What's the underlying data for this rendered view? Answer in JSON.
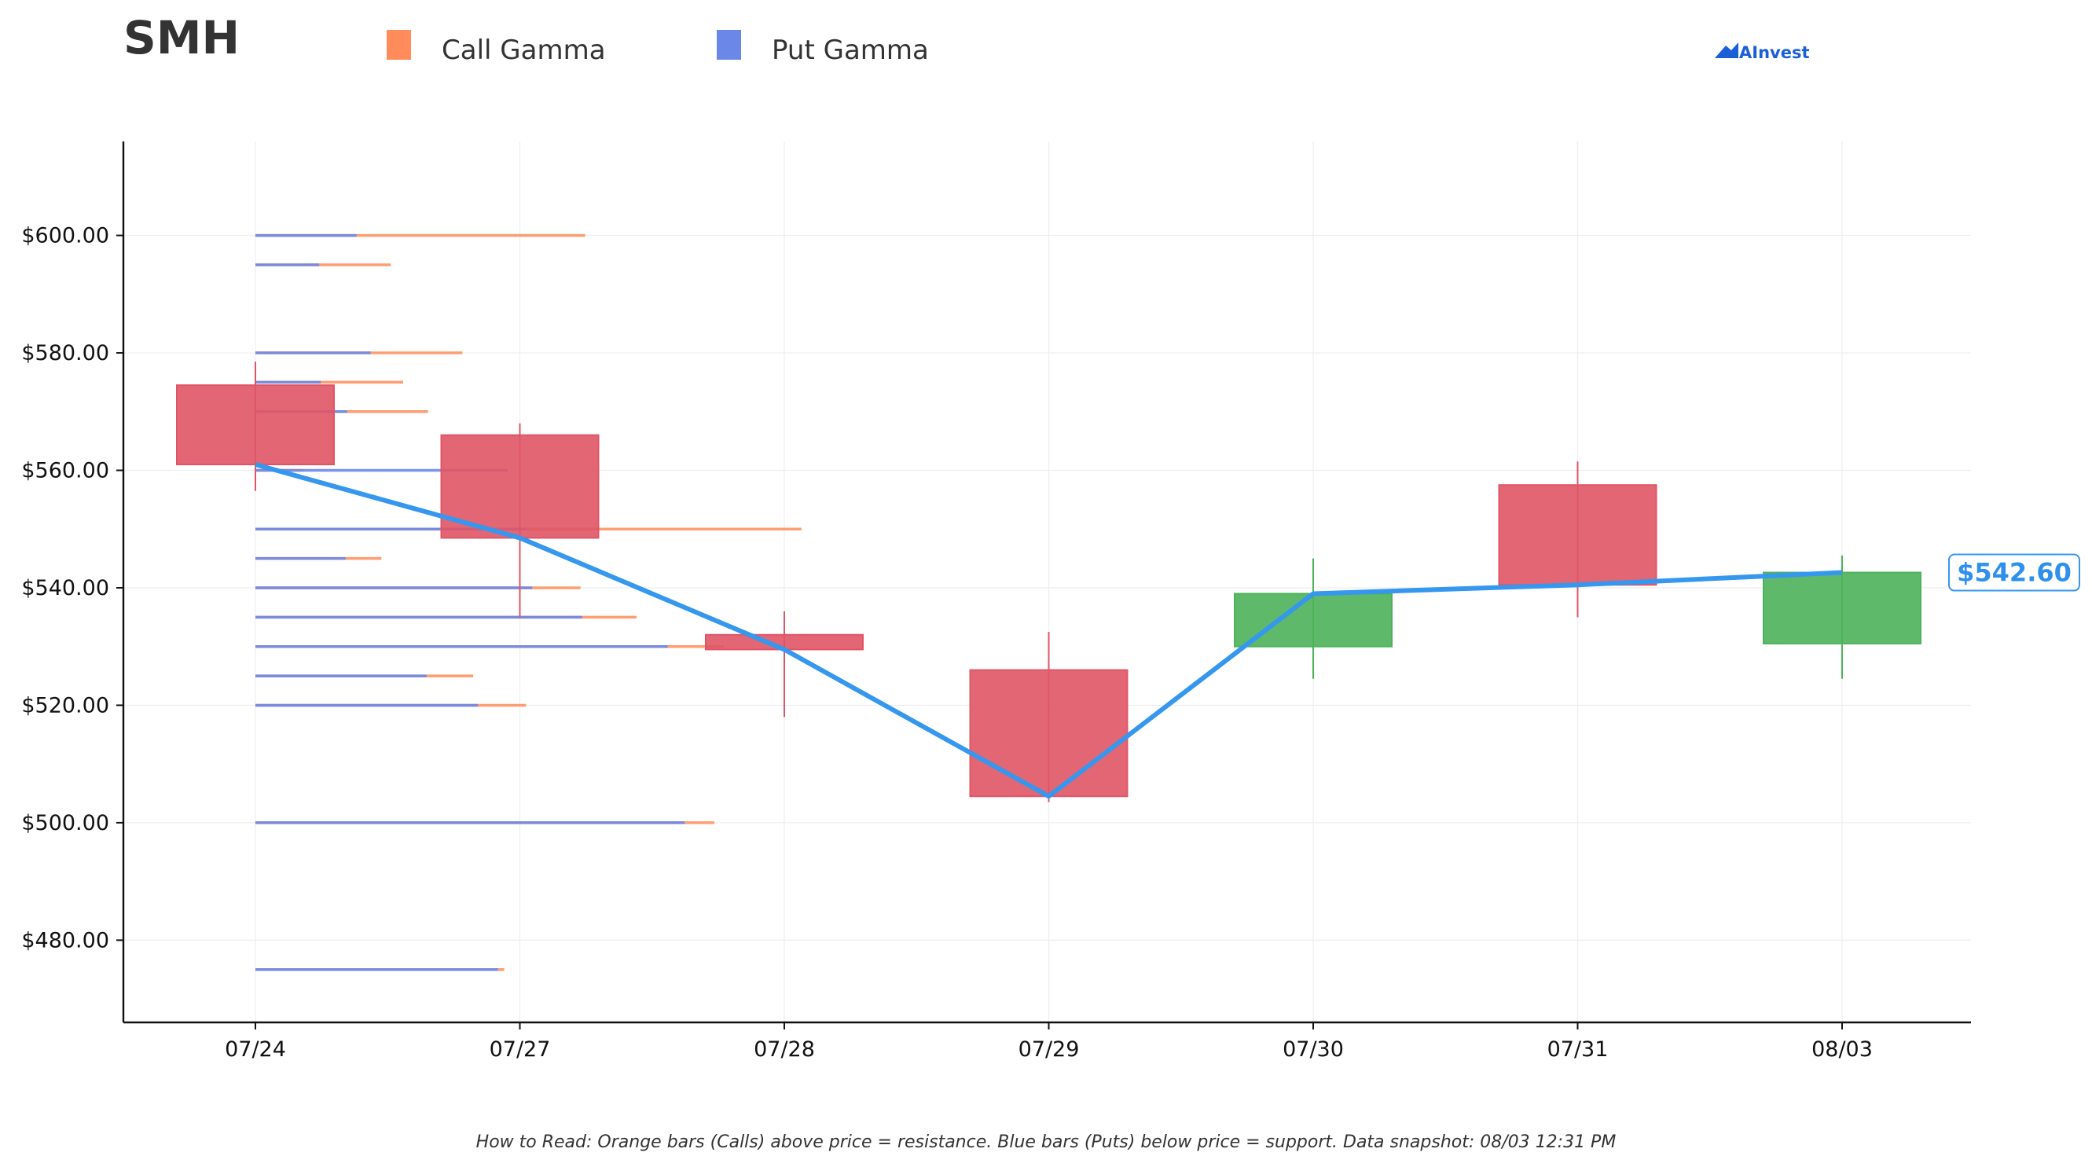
{
  "title": "SMH",
  "legend": [
    {
      "label": "Call Gamma",
      "color": "#ff8c5a"
    },
    {
      "label": "Put Gamma",
      "color": "#6b88e8"
    }
  ],
  "brand": {
    "text": "AInvest",
    "icon": "ainvest-logo-icon",
    "color": "#1a5fd6"
  },
  "footnote": "How to Read: Orange bars (Calls) above price = resistance. Blue bars (Puts) below price = support. Data snapshot: 08/03 12:31 PM",
  "colors": {
    "up": "#4cb35a",
    "down": "#e05566",
    "close_line": "#3597ee",
    "call": "#ff8c5a",
    "put": "#6b88e8"
  },
  "chart_data": {
    "type": "candlestick",
    "categories": [
      "07/24",
      "07/27",
      "07/28",
      "07/29",
      "07/30",
      "07/31",
      "08/03"
    ],
    "ylim": [
      466,
      616
    ],
    "yticks": [
      "$480.00",
      "$500.00",
      "$520.00",
      "$540.00",
      "$560.00",
      "$580.00",
      "$600.00"
    ],
    "ytick_values": [
      480,
      500,
      520,
      540,
      560,
      580,
      600
    ],
    "grid": true,
    "candles": [
      {
        "date": "07/24",
        "open": 574.5,
        "high": 578.5,
        "low": 556.5,
        "close": 561.0
      },
      {
        "date": "07/27",
        "open": 566.0,
        "high": 568.0,
        "low": 535.0,
        "close": 548.5
      },
      {
        "date": "07/28",
        "open": 532.0,
        "high": 536.0,
        "low": 518.0,
        "close": 529.5
      },
      {
        "date": "07/29",
        "open": 526.0,
        "high": 532.5,
        "low": 503.5,
        "close": 504.5
      },
      {
        "date": "07/30",
        "open": 530.0,
        "high": 545.0,
        "low": 524.5,
        "close": 539.0
      },
      {
        "date": "07/31",
        "open": 557.5,
        "high": 561.5,
        "low": 535.0,
        "close": 540.5
      },
      {
        "date": "08/03",
        "open": 530.5,
        "high": 545.5,
        "low": 524.5,
        "close": 542.6
      }
    ],
    "last_price_label": "$542.60",
    "gamma_series": [
      {
        "name": "Call Gamma",
        "strikes": [
          600,
          595,
          580,
          575,
          570,
          560,
          550,
          545,
          540,
          535,
          530,
          525,
          520,
          500,
          475
        ],
        "values": [
          2.12,
          0.87,
          1.33,
          0.95,
          1.11,
          0.31,
          3.51,
          0.81,
          2.09,
          2.45,
          3.01,
          1.4,
          1.74,
          2.95,
          1.6
        ]
      },
      {
        "name": "Put Gamma",
        "strikes": [
          600,
          595,
          580,
          575,
          570,
          560,
          550,
          545,
          540,
          535,
          530,
          525,
          520,
          500,
          475
        ],
        "values": [
          0.65,
          0.41,
          0.74,
          0.42,
          0.59,
          1.62,
          1.74,
          0.58,
          1.78,
          2.1,
          2.65,
          1.1,
          1.43,
          2.76,
          1.56
        ]
      }
    ]
  }
}
